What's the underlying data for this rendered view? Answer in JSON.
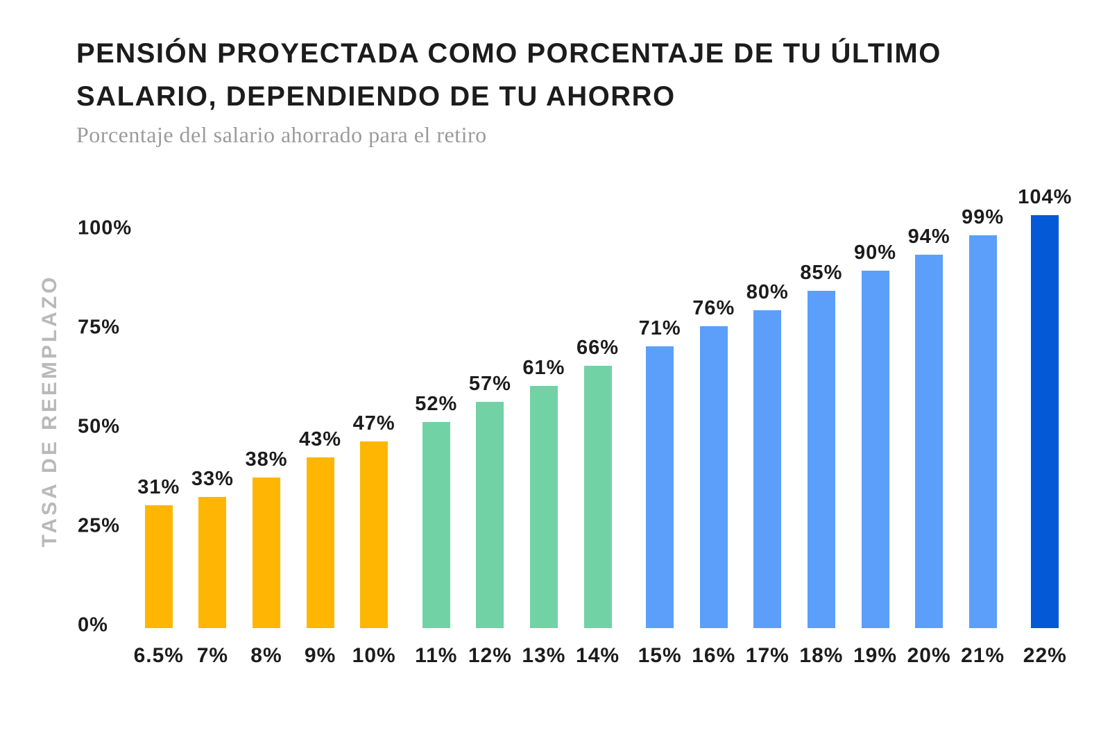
{
  "page": {
    "title_line1": "PENSIÓN PROYECTADA COMO PORCENTAJE DE TU ÚLTIMO",
    "title_line2": "SALARIO, DEPENDIENDO DE TU AHORRO",
    "subtitle": "Porcentaje del salario ahorrado para el retiro"
  },
  "colors": {
    "orange": "#FFB602",
    "green": "#71D2A5",
    "light_blue": "#5B9FFA",
    "dark_blue": "#0459D6",
    "axis_gray": "#B9B9B9",
    "subtitle_gray": "#9B9B9B",
    "text_black": "#1C1C1C",
    "background": "#FFFFFF"
  },
  "chart_data": {
    "type": "bar",
    "title": "PENSIÓN PROYECTADA COMO PORCENTAJE DE TU ÚLTIMO SALARIO, DEPENDIENDO DE TU AHORRO",
    "subtitle": "Porcentaje del salario ahorrado para el retiro",
    "xlabel": "",
    "ylabel": "TASA DE REEMPLAZO",
    "categories": [
      "6.5%",
      "7%",
      "8%",
      "9%",
      "10%",
      "11%",
      "12%",
      "13%",
      "14%",
      "15%",
      "16%",
      "17%",
      "18%",
      "19%",
      "20%",
      "21%",
      "22%"
    ],
    "values": [
      31,
      33,
      38,
      43,
      47,
      52,
      57,
      61,
      66,
      71,
      76,
      80,
      85,
      90,
      94,
      99,
      104
    ],
    "bar_labels": [
      "31%",
      "33%",
      "38%",
      "43%",
      "47%",
      "52%",
      "57%",
      "61%",
      "66%",
      "71%",
      "76%",
      "80%",
      "85%",
      "90%",
      "94%",
      "99%",
      "104%"
    ],
    "bar_colors": [
      "#FFB602",
      "#FFB602",
      "#FFB602",
      "#FFB602",
      "#FFB602",
      "#71D2A5",
      "#71D2A5",
      "#71D2A5",
      "#71D2A5",
      "#5B9FFA",
      "#5B9FFA",
      "#5B9FFA",
      "#5B9FFA",
      "#5B9FFA",
      "#5B9FFA",
      "#5B9FFA",
      "#0459D6"
    ],
    "y_ticks": [
      {
        "label": "100%",
        "value": 100
      },
      {
        "label": "75%",
        "value": 75
      },
      {
        "label": "50%",
        "value": 50
      },
      {
        "label": "25%",
        "value": 25
      },
      {
        "label": "0%",
        "value": 0
      }
    ],
    "ylim": [
      0,
      110
    ],
    "grid": false,
    "legend_position": "none"
  }
}
